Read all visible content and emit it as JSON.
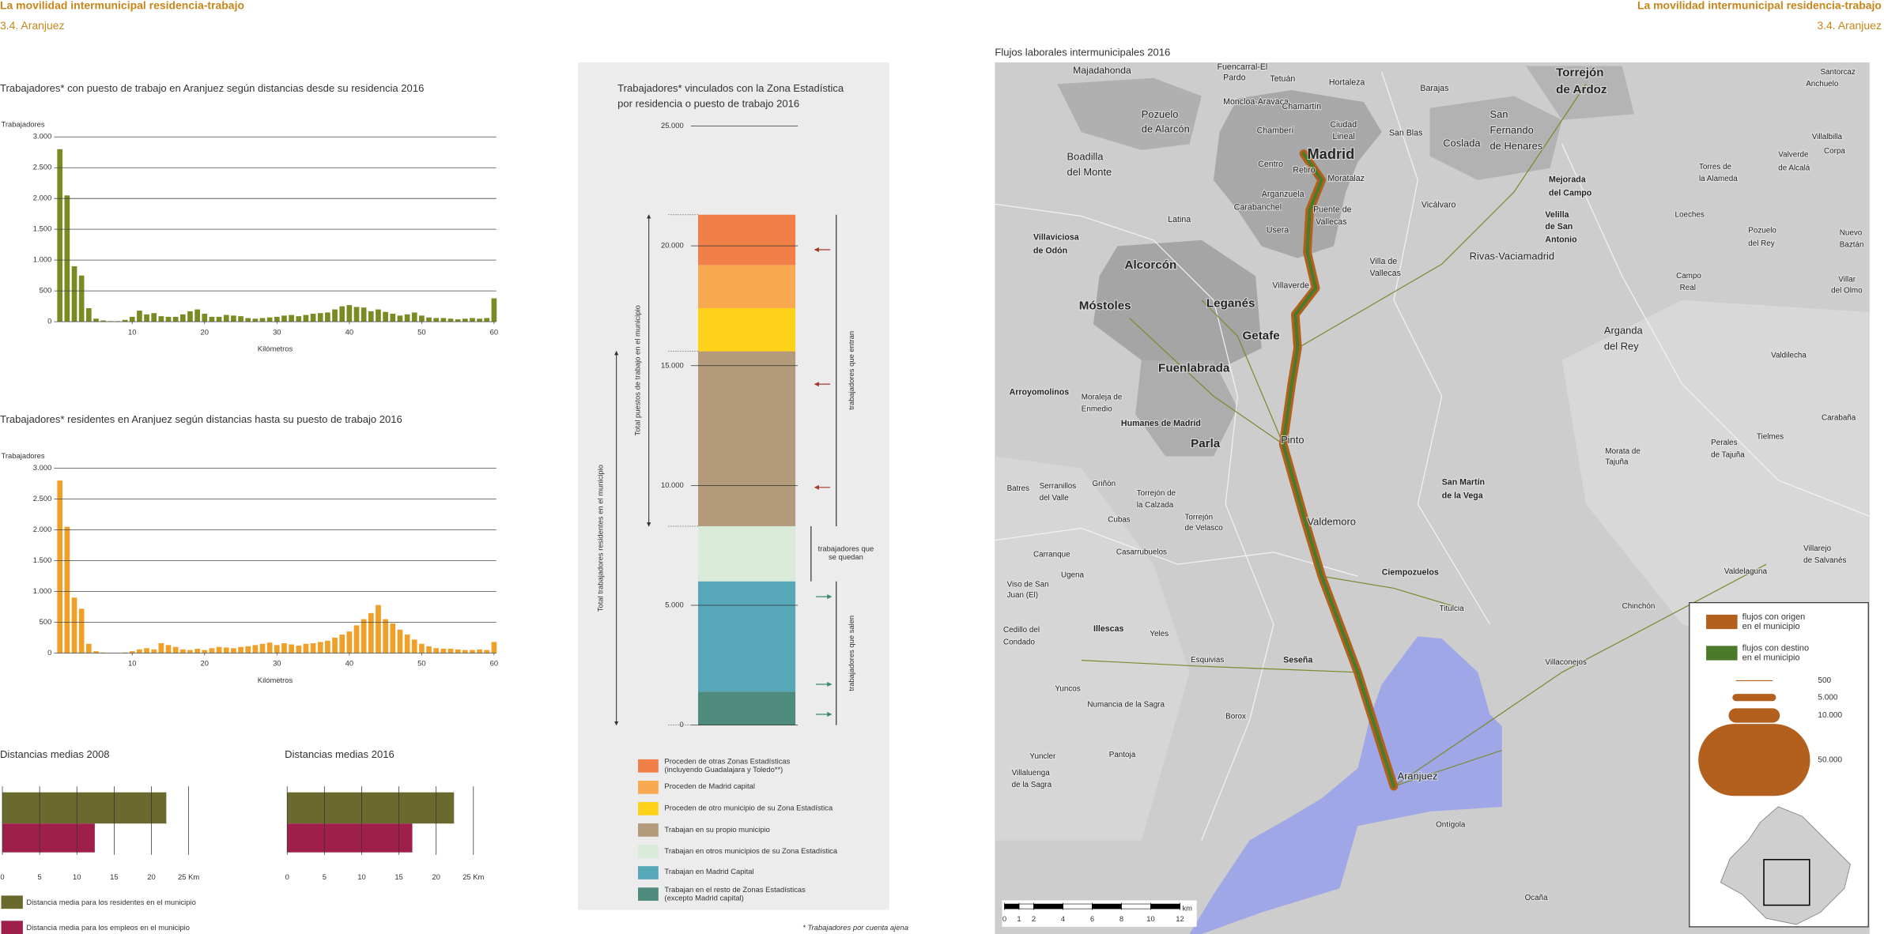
{
  "header": {
    "title": "La movilidad intermunicipal residencia-trabajo",
    "subtitle": "3.4. Aranjuez"
  },
  "chart_data": [
    {
      "type": "bar",
      "title": "Trabajadores* con puesto de trabajo en Aranjuez según distancias desde su residencia 2016",
      "y_label": "Trabajadores",
      "x_label": "Kilómetros",
      "color": "#7b8a22",
      "x": [
        0,
        1,
        2,
        3,
        4,
        5,
        6,
        7,
        8,
        9,
        10,
        11,
        12,
        13,
        14,
        15,
        16,
        17,
        18,
        19,
        20,
        21,
        22,
        23,
        24,
        25,
        26,
        27,
        28,
        29,
        30,
        31,
        32,
        33,
        34,
        35,
        36,
        37,
        38,
        39,
        40,
        41,
        42,
        43,
        44,
        45,
        46,
        47,
        48,
        49,
        50,
        51,
        52,
        53,
        54,
        55,
        56,
        57,
        58,
        59,
        60
      ],
      "values": [
        2800,
        2050,
        900,
        750,
        220,
        50,
        20,
        10,
        10,
        30,
        80,
        180,
        120,
        140,
        90,
        80,
        80,
        120,
        170,
        200,
        130,
        80,
        80,
        110,
        100,
        90,
        60,
        50,
        60,
        70,
        80,
        100,
        110,
        90,
        110,
        130,
        140,
        150,
        200,
        250,
        270,
        240,
        230,
        170,
        200,
        160,
        130,
        100,
        120,
        150,
        100,
        70,
        60,
        60,
        50,
        40,
        50,
        60,
        50,
        60,
        380
      ],
      "xlim": [
        -0.8,
        60.3
      ],
      "xticks": [
        10,
        20,
        30,
        40,
        50,
        60
      ],
      "ylim": [
        0,
        3000
      ],
      "yticks": [
        0,
        500,
        {
          "value": 1000,
          "label": "1.000"
        },
        {
          "value": 1500,
          "label": "1.500"
        },
        {
          "value": 2000,
          "label": "2.000"
        },
        {
          "value": 2500,
          "label": "2.500"
        },
        {
          "value": 3000,
          "label": "3.000"
        }
      ],
      "grid": true
    },
    {
      "type": "bar",
      "title": "Trabajadores* residentes en Aranjuez según distancias hasta su puesto de trabajo 2016",
      "y_label": "Trabajadores",
      "x_label": "Kilómetros",
      "color": "#f0a029",
      "x": [
        0,
        1,
        2,
        3,
        4,
        5,
        6,
        7,
        8,
        9,
        10,
        11,
        12,
        13,
        14,
        15,
        16,
        17,
        18,
        19,
        20,
        21,
        22,
        23,
        24,
        25,
        26,
        27,
        28,
        29,
        30,
        31,
        32,
        33,
        34,
        35,
        36,
        37,
        38,
        39,
        40,
        41,
        42,
        43,
        44,
        45,
        46,
        47,
        48,
        49,
        50,
        51,
        52,
        53,
        54,
        55,
        56,
        57,
        58,
        59,
        60
      ],
      "values": [
        2800,
        2050,
        900,
        720,
        150,
        30,
        10,
        5,
        5,
        10,
        30,
        60,
        80,
        60,
        160,
        130,
        100,
        60,
        50,
        70,
        50,
        80,
        100,
        90,
        80,
        100,
        110,
        130,
        150,
        170,
        130,
        160,
        140,
        120,
        150,
        160,
        180,
        200,
        250,
        300,
        350,
        450,
        550,
        650,
        780,
        550,
        480,
        380,
        300,
        220,
        150,
        110,
        80,
        70,
        70,
        60,
        50,
        50,
        60,
        50,
        180
      ],
      "xlim": [
        -0.8,
        60.3
      ],
      "xticks": [
        10,
        20,
        30,
        40,
        50,
        60
      ],
      "ylim": [
        0,
        3000
      ],
      "yticks": [
        0,
        500,
        {
          "value": 1000,
          "label": "1.000"
        },
        {
          "value": 1500,
          "label": "1.500"
        },
        {
          "value": 2000,
          "label": "2.000"
        },
        {
          "value": 2500,
          "label": "2.500"
        },
        {
          "value": 3000,
          "label": "3.000"
        }
      ],
      "grid": true
    },
    {
      "type": "stacked_bar",
      "title": [
        "Trabajadores* vinculados con la Zona Estadística",
        "por residencia o puesto de trabajo 2016"
      ],
      "series": [
        {
          "name": "Trabajan en el resto de Zonas Estadísticas (excepto Madrid capital)",
          "color": "#4e8b7c",
          "values": [
            1400
          ]
        },
        {
          "name": "Trabajan en Madrid Capital",
          "color": "#56a8b8",
          "values": [
            4600
          ]
        },
        {
          "name": "Trabajan en otros municipios de su Zona Estadística",
          "color": "#d9ead9",
          "values": [
            2300
          ]
        },
        {
          "name": "Trabajan en su propio municipio",
          "color": "#b39a7a",
          "values": [
            7300
          ]
        },
        {
          "name": "Proceden de otro municipio de su Zona Estadística",
          "color": "#ffd21a",
          "values": [
            1800
          ]
        },
        {
          "name": "Proceden de Madrid capital",
          "color": "#f9a94f",
          "values": [
            1800
          ]
        },
        {
          "name": "Proceden de otras Zonas Estadísticas (incluyendo Guadalajara y Toledo**)",
          "color": "#f08048",
          "values": [
            2100
          ]
        }
      ],
      "ylim": [
        0,
        25000
      ],
      "yticks": [
        0,
        {
          "value": 5000,
          "label": "5.000"
        },
        {
          "value": 10000,
          "label": "10.000"
        },
        {
          "value": 15000,
          "label": "15.000"
        },
        {
          "value": 20000,
          "label": "20.000"
        },
        {
          "value": 25000,
          "label": "25.000"
        }
      ],
      "annotations": {
        "total_puestos": "Total puestos de trabajo en el municipio",
        "total_residentes": "Total trabajadores residentes en el municipio",
        "entran": "trabajadores que entran",
        "quedan": "trabajadores que se quedan",
        "salen": "trabajadores que salen"
      }
    },
    {
      "type": "hbar",
      "title": "Distancias medias 2008",
      "series": [
        {
          "name": "Distancia media para los residentes en el municipio",
          "color": "#6b6a2e",
          "values": [
            22
          ]
        },
        {
          "name": "Distancia media para los empleos en el municipio",
          "color": "#9e1f4a",
          "values": [
            12.4
          ]
        }
      ],
      "xlim": [
        0,
        25
      ],
      "xticks": [
        0,
        5,
        10,
        15,
        20,
        {
          "value": 25,
          "label": "25 Km"
        }
      ]
    },
    {
      "type": "hbar",
      "title": "Distancias medias 2016",
      "series": [
        {
          "color": "#6b6a2e",
          "values": [
            22.4
          ]
        },
        {
          "color": "#9e1f4a",
          "values": [
            16.8
          ]
        }
      ],
      "xlim": [
        0,
        25
      ],
      "xticks": [
        0,
        5,
        10,
        15,
        20,
        {
          "value": 25,
          "label": "25 Km"
        }
      ]
    }
  ],
  "footnote": "* Trabajadores por cuenta ajena",
  "map": {
    "title": "Flujos laborales intermunicipales 2016",
    "places": [
      "Majadahonda",
      "Fuencarral-El",
      "Pardo",
      "Tetuán",
      "Hortaleza",
      "Barajas",
      "Torrejón",
      "de Ardoz",
      "Santorcaz",
      "Anchuelo",
      "Moncloa-Aravaca",
      "Chamartín",
      "Pozuelo",
      "de Alarcón",
      "Chamberí",
      "Ciudad",
      "Lineal",
      "San Blas",
      "San",
      "Fernando",
      "de Henares",
      "Coslada",
      "Villalbilla",
      "Boadilla",
      "del Monte",
      "Madrid",
      "Centro",
      "Retiro",
      "Moratalaz",
      "Mejorada",
      "del Campo",
      "Valverde",
      "de Alcalá",
      "Corpa",
      "Torres de",
      "la Alameda",
      "Arganzuela",
      "Puente de",
      "Vallecas",
      "Carabanchel",
      "Vicálvaro",
      "Velilla",
      "de San",
      "Antonio",
      "Loeches",
      "Latina",
      "Usera",
      "Pozuelo",
      "del Rey",
      "Nuevo",
      "Baztán",
      "Villaviciosa",
      "de Odón",
      "Alcorcón",
      "Rivas-Vaciamadrid",
      "Villa de",
      "Vallecas",
      "Campo",
      "Real",
      "Villar",
      "del Olmo",
      "Villaverde",
      "Leganés",
      "Móstoles",
      "Arganda",
      "del Rey",
      "Getafe",
      "Valdilecha",
      "Fuenlabrada",
      "Arroyomolinos",
      "Moraleja de",
      "Enmedio",
      "Carabaña",
      "Humanes de Madrid",
      "Parla",
      "Pinto",
      "Tielmes",
      "Perales",
      "de Tajuña",
      "Morata de",
      "Tajuña",
      "Batres",
      "Serranillos",
      "del Valle",
      "Griñón",
      "San Martín",
      "de la Vega",
      "Torrejón de",
      "la Calzada",
      "Cubas",
      "Torrejón",
      "de Velasco",
      "Valdemoro",
      "Carranque",
      "Casarrubuelos",
      "Valdelaguna",
      "Villarejo",
      "de Salvanés",
      "Ugena",
      "Ciempozuelos",
      "Viso de San",
      "Juan (El)",
      "Titulcia",
      "Chinchón",
      "Cedillo del",
      "Condado",
      "Illescas",
      "Yeles",
      "Esquivias",
      "Seseña",
      "Villaconejos",
      "Yuncos",
      "Numancia de la Sagra",
      "Borox",
      "Yuncler",
      "Pantoja",
      "Aranjuez",
      "Villaluenga",
      "de la Sagra",
      "Ontígola",
      "Ocaña"
    ],
    "legend": {
      "items": [
        {
          "label": "flujos con origen en el municipio",
          "color": "#b35f1e"
        },
        {
          "label": "flujos con destino en el municipio",
          "color": "#4a7a2a"
        }
      ],
      "sizes": [
        500,
        {
          "value": 5000,
          "label": "5.000"
        },
        {
          "value": 10000,
          "label": "10.000"
        },
        {
          "value": 50000,
          "label": "50.000"
        }
      ]
    },
    "scale": {
      "ticks": [
        0,
        1,
        2,
        4,
        6,
        8,
        10,
        12
      ],
      "unit": "km"
    }
  }
}
